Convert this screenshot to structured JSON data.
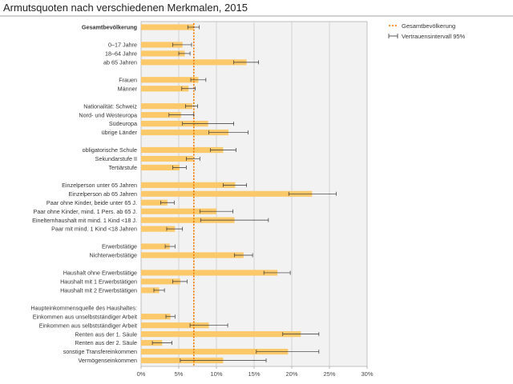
{
  "chart_data": {
    "type": "bar",
    "orientation": "horizontal",
    "title": "Armutsquoten nach verschiedenen Merkmalen, 2015",
    "xlim": [
      0,
      30
    ],
    "x_ticks": [
      "0%",
      "5%",
      "10%",
      "15%",
      "20%",
      "25%",
      "30%"
    ],
    "reference_value": 7.0,
    "legend": [
      {
        "label": "Gesamtbevölkerung",
        "kind": "reference-line"
      },
      {
        "label": "Vertrauensintervall 95%",
        "kind": "error-bar"
      }
    ],
    "colors": {
      "bar": "#fcc96a",
      "reference": "#f07d00",
      "error": "#333333",
      "plot_bg": "#f2f2f2",
      "grid": "#bdbdbd"
    },
    "groups": [
      {
        "categories": [
          {
            "label": "Gesamtbevölkerung",
            "value": 7.0,
            "ci": [
              6.2,
              7.7
            ],
            "bold": true
          }
        ]
      },
      {
        "categories": [
          {
            "label": "0–17 Jahre",
            "value": 5.5,
            "ci": [
              4.2,
              6.7
            ]
          },
          {
            "label": "18–64 Jahre",
            "value": 5.8,
            "ci": [
              5.0,
              6.5
            ]
          },
          {
            "label": "ab 65 Jahren",
            "value": 14.0,
            "ci": [
              12.3,
              15.6
            ]
          }
        ]
      },
      {
        "categories": [
          {
            "label": "Frauen",
            "value": 7.6,
            "ci": [
              6.6,
              8.6
            ]
          },
          {
            "label": "Männer",
            "value": 6.3,
            "ci": [
              5.4,
              7.2
            ]
          }
        ]
      },
      {
        "categories": [
          {
            "label": "Nationalität: Schweiz",
            "value": 6.8,
            "ci": [
              5.9,
              7.5
            ]
          },
          {
            "label": "Nord- und Westeuropa",
            "value": 5.3,
            "ci": [
              3.7,
              7.0
            ]
          },
          {
            "label": "Südeuropa",
            "value": 8.9,
            "ci": [
              5.5,
              12.3
            ]
          },
          {
            "label": "übrige Länder",
            "value": 11.6,
            "ci": [
              9.0,
              14.2
            ]
          }
        ]
      },
      {
        "categories": [
          {
            "label": "obligatorische Schule",
            "value": 10.9,
            "ci": [
              9.2,
              12.6
            ]
          },
          {
            "label": "Sekundarstufe II",
            "value": 6.9,
            "ci": [
              6.0,
              7.8
            ]
          },
          {
            "label": "Tertiärstufe",
            "value": 5.1,
            "ci": [
              4.2,
              6.0
            ]
          }
        ]
      },
      {
        "categories": [
          {
            "label": "Einzelperson unter 65 Jahren",
            "value": 12.5,
            "ci": [
              10.9,
              14.0
            ]
          },
          {
            "label": "Einzelperson ab 65 Jahren",
            "value": 22.7,
            "ci": [
              19.6,
              25.9
            ]
          },
          {
            "label": "Paar ohne Kinder, beide unter 65 J.",
            "value": 3.5,
            "ci": [
              2.6,
              4.4
            ]
          },
          {
            "label": "Paar ohne Kinder, mind. 1 Pers. ab 65 J.",
            "value": 10.0,
            "ci": [
              7.8,
              12.2
            ]
          },
          {
            "label": "Einelternhaushalt mit mind. 1 Kind <18 J.",
            "value": 12.4,
            "ci": [
              7.9,
              16.9
            ]
          },
          {
            "label": "Paar mit mind. 1 Kind <18 Jahren",
            "value": 4.5,
            "ci": [
              3.4,
              5.5
            ]
          }
        ]
      },
      {
        "categories": [
          {
            "label": "Erwerbstätige",
            "value": 3.8,
            "ci": [
              3.2,
              4.5
            ]
          },
          {
            "label": "Nichterwerbstätige",
            "value": 13.6,
            "ci": [
              12.4,
              14.8
            ]
          }
        ]
      },
      {
        "categories": [
          {
            "label": "Haushalt ohne Erwerbstätige",
            "value": 18.1,
            "ci": [
              16.3,
              19.8
            ]
          },
          {
            "label": "Haushalt mit 1 Erwerbstätigen",
            "value": 5.2,
            "ci": [
              4.2,
              6.1
            ]
          },
          {
            "label": "Haushalt mit 2 Erwerbstätigen",
            "value": 2.4,
            "ci": [
              1.7,
              3.1
            ]
          }
        ]
      },
      {
        "header": "Haupteinkommensquelle des Haushaltes:",
        "categories": [
          {
            "label": "Einkommen aus unselbstständiger Arbeit",
            "value": 3.9,
            "ci": [
              3.3,
              4.5
            ]
          },
          {
            "label": "Einkommen aus selbstständiger Arbeit",
            "value": 9.0,
            "ci": [
              6.5,
              11.5
            ]
          },
          {
            "label": "Renten aus der 1. Säule",
            "value": 21.2,
            "ci": [
              18.8,
              23.6
            ]
          },
          {
            "label": "Renten aus der 2. Säule",
            "value": 2.8,
            "ci": [
              1.5,
              4.1
            ]
          },
          {
            "label": "sonstige Transfereinkommen",
            "value": 19.5,
            "ci": [
              15.3,
              23.6
            ]
          },
          {
            "label": "Vermögenseinkommen",
            "value": 10.9,
            "ci": [
              5.2,
              16.6
            ]
          }
        ]
      }
    ]
  }
}
